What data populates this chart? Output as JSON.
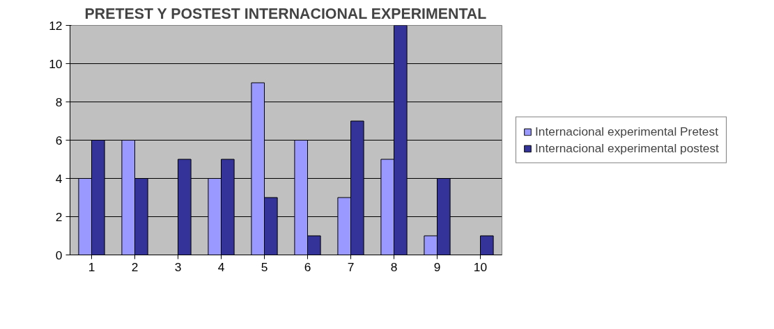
{
  "chart_data": {
    "type": "bar",
    "title": "PRETEST Y POSTEST INTERNACIONAL EXPERIMENTAL",
    "categories": [
      "1",
      "2",
      "3",
      "4",
      "5",
      "6",
      "7",
      "8",
      "9",
      "10"
    ],
    "series": [
      {
        "name": "Internacional experimental Pretest",
        "color": "#9999ff",
        "values": [
          4,
          6,
          0,
          4,
          9,
          6,
          3,
          5,
          1,
          0
        ]
      },
      {
        "name": "Internacional experimental postest",
        "color": "#333399",
        "values": [
          6,
          4,
          5,
          5,
          3,
          1,
          7,
          12,
          4,
          1
        ]
      }
    ],
    "ylim": [
      0,
      12
    ],
    "yticks": [
      0,
      2,
      4,
      6,
      8,
      10,
      12
    ],
    "grid": "y",
    "legend": "right"
  }
}
